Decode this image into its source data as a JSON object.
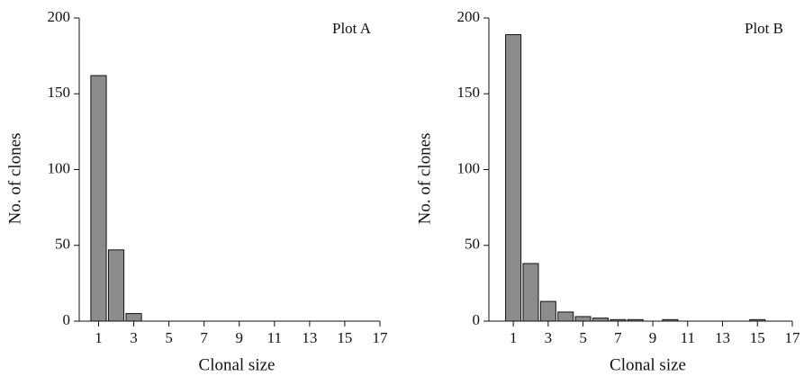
{
  "chart_data": [
    {
      "type": "bar",
      "title": "Plot A",
      "xlabel": "Clonal size",
      "ylabel": "No. of clones",
      "x": [
        1,
        2,
        3,
        4,
        5,
        6,
        7,
        8,
        9,
        10,
        11,
        12,
        13,
        14,
        15,
        16,
        17
      ],
      "values": [
        162,
        47,
        5,
        0,
        0,
        0,
        0,
        0,
        0,
        0,
        0,
        0,
        0,
        0,
        0,
        0,
        0
      ],
      "color": "#8c8c8c",
      "xlim": [
        -0.1,
        17
      ],
      "ylim": [
        0,
        200
      ],
      "xticks": [
        1,
        3,
        5,
        7,
        9,
        11,
        13,
        15,
        17
      ],
      "yticks": [
        0,
        50,
        100,
        150,
        200
      ]
    },
    {
      "type": "bar",
      "title": "Plot B",
      "xlabel": "Clonal size",
      "ylabel": "No. of clones",
      "x": [
        1,
        2,
        3,
        4,
        5,
        6,
        7,
        8,
        9,
        10,
        11,
        12,
        13,
        14,
        15,
        16,
        17
      ],
      "values": [
        189,
        38,
        13,
        6,
        3,
        2,
        1,
        1,
        0,
        1,
        0,
        0,
        0,
        0,
        1,
        0,
        0
      ],
      "color": "#8c8c8c",
      "xlim": [
        -0.4,
        17
      ],
      "ylim": [
        0,
        200
      ],
      "xticks": [
        1,
        3,
        5,
        7,
        9,
        11,
        13,
        15,
        17
      ],
      "yticks": [
        0,
        50,
        100,
        150,
        200
      ]
    }
  ]
}
